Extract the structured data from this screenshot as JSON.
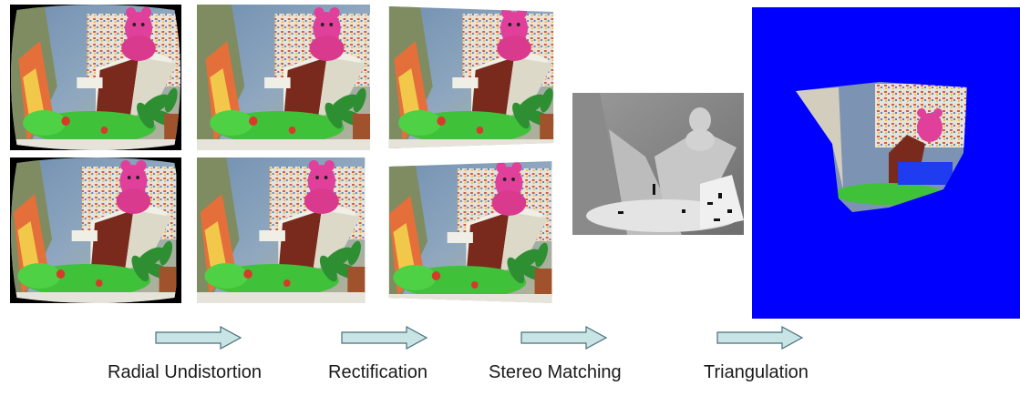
{
  "stages": [
    {
      "id": "radial_undistortion",
      "label": "Radial Undistortion"
    },
    {
      "id": "rectification",
      "label": "Rectification"
    },
    {
      "id": "stereo_matching",
      "label": "Stereo Matching"
    },
    {
      "id": "triangulation",
      "label": "Triangulation"
    }
  ],
  "colors": {
    "arrow_fill": "#c8e4e4",
    "arrow_stroke": "#4a6f7a",
    "point_cloud_bg": "#0000ff",
    "teddy_pink": "#e0409a",
    "frog_green": "#3fc13a",
    "roof_brown": "#7a2a1c"
  },
  "icons": [
    "right-arrow-icon"
  ]
}
